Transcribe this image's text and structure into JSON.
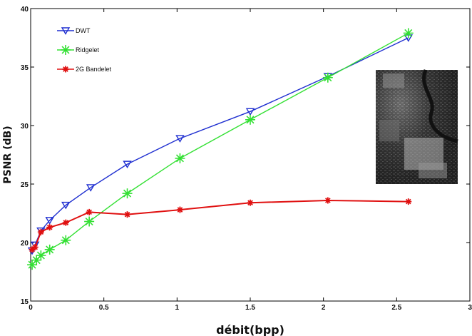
{
  "chart_data": {
    "type": "line",
    "xlabel": "débit(bpp)",
    "ylabel": "PSNR (dB)",
    "xlim": [
      0,
      3
    ],
    "ylim": [
      15,
      40
    ],
    "xticks": [
      "0",
      "0.5",
      "1",
      "1.5",
      "2",
      "2.5",
      "3"
    ],
    "yticks": [
      "15",
      "20",
      "25",
      "30",
      "35",
      "40"
    ],
    "xtick_values": [
      0,
      0.5,
      1,
      1.5,
      2,
      2.5,
      3
    ],
    "ytick_values": [
      15,
      20,
      25,
      30,
      35,
      40
    ],
    "grid": false,
    "legend_position": "top-left",
    "inset": "grayscale aerial image",
    "series": [
      {
        "name": "DWT",
        "color": "#1f2fd0",
        "marker": "triangle-down",
        "x": [
          0.01,
          0.03,
          0.07,
          0.13,
          0.24,
          0.41,
          0.66,
          1.02,
          1.5,
          2.03,
          2.58
        ],
        "y": [
          19.3,
          19.8,
          21.0,
          21.9,
          23.2,
          24.7,
          26.7,
          28.9,
          31.2,
          34.2,
          37.5
        ]
      },
      {
        "name": "Ridgelet",
        "color": "#33e033",
        "marker": "asterisk",
        "x": [
          0.01,
          0.04,
          0.07,
          0.13,
          0.24,
          0.4,
          0.66,
          1.02,
          1.5,
          2.03,
          2.58
        ],
        "y": [
          18.1,
          18.5,
          18.9,
          19.4,
          20.2,
          21.8,
          24.2,
          27.2,
          30.5,
          34.1,
          37.9
        ]
      },
      {
        "name": "2G Bandelet",
        "color": "#e01010",
        "marker": "star",
        "x": [
          0.01,
          0.03,
          0.07,
          0.13,
          0.24,
          0.4,
          0.66,
          1.02,
          1.5,
          2.03,
          2.58
        ],
        "y": [
          19.4,
          19.6,
          20.9,
          21.3,
          21.7,
          22.6,
          22.4,
          22.8,
          23.4,
          23.6,
          23.5
        ]
      }
    ]
  }
}
